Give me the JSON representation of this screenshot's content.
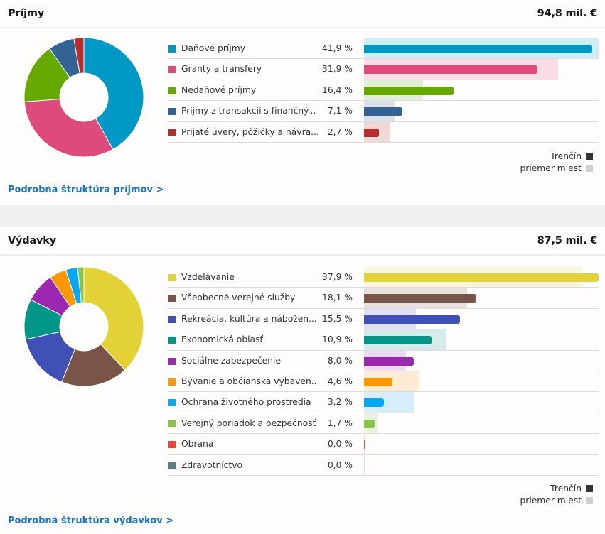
{
  "chart_data": [
    {
      "type": "bar",
      "title": "Príjmy",
      "total": "94,8 mil. €",
      "categories": [
        "Daňové príjmy",
        "Granty a transfery",
        "Nedaňové príjmy",
        "Príjmy z transakcií s finančný...",
        "Prijaté úvery, pôžičky a návra..."
      ],
      "series": [
        {
          "name": "Trenčín",
          "values": [
            41.9,
            31.9,
            16.4,
            7.1,
            2.7
          ]
        },
        {
          "name": "priemer miest",
          "values": [
            43.1,
            35.6,
            10.8,
            5.7,
            4.8
          ]
        }
      ],
      "value_labels": [
        "41,9 %",
        "31,9 %",
        "16,4 %",
        "7,1 %",
        "2,7 %"
      ],
      "colors": [
        "#0099c6",
        "#de4a7b",
        "#66aa00",
        "#316395",
        "#b82e2e"
      ],
      "avg_colors": [
        "#d3ebf3",
        "#f9dce6",
        "#e3efd3",
        "#dae1ea",
        "#f1d8d8"
      ],
      "xlim": [
        0,
        43.1
      ],
      "pie": {
        "type": "pie",
        "values": [
          41.9,
          31.9,
          16.4,
          7.1,
          2.7
        ]
      }
    },
    {
      "type": "bar",
      "title": "Výdavky",
      "total": "87,5 mil. €",
      "categories": [
        "Vzdelávanie",
        "Všeobecné verejné služby",
        "Rekreácia, kultúra a náboženstvo...",
        "Ekonomická oblasť",
        "Sociálne zabezpečenie",
        "Bývanie a občianska vybaven...",
        "Ochrana životného prostredia",
        "Verejný poriadok a bezpečnosť",
        "Obrana",
        "Zdravotníctvo"
      ],
      "series": [
        {
          "name": "Trenčín",
          "values": [
            37.9,
            18.1,
            15.5,
            10.9,
            8.0,
            4.6,
            3.2,
            1.7,
            0.0,
            0.0
          ]
        },
        {
          "name": "priemer miest",
          "values": [
            35.4,
            16.6,
            8.4,
            13.2,
            6.8,
            9.0,
            8.0,
            2.3,
            0.1,
            0.1
          ]
        }
      ],
      "value_labels": [
        "37,9 %",
        "18,1 %",
        "15,5 %",
        "10,9 %",
        "8,0 %",
        "4,6 %",
        "3,2 %",
        "1,7 %",
        "0,0 %",
        "0,0 %"
      ],
      "colors": [
        "#e2d235",
        "#795548",
        "#3f51b5",
        "#009688",
        "#9c27b0",
        "#ff9800",
        "#03a9f4",
        "#8bc34a",
        "#f44336",
        "#607d8b"
      ],
      "avg_colors": [
        "#faf5df",
        "#e9e0df",
        "#dfdff2",
        "#d5ecea",
        "#eddaef",
        "#fdebd4",
        "#d5eefa",
        "#e8f2df",
        "#fbdada",
        "#e0e5e8"
      ],
      "xlim": [
        0,
        37.9
      ],
      "pie": {
        "type": "pie",
        "values": [
          37.9,
          18.1,
          15.5,
          10.9,
          8.0,
          4.6,
          3.2,
          1.7,
          0.0,
          0.0
        ]
      }
    }
  ],
  "sections": [
    {
      "title": "Príjmy",
      "total": "94,8 mil. €",
      "labels": [
        "Daňové príjmy",
        "Granty a transfery",
        "Nedaňové príjmy",
        "Príjmy z transakcií s finančný...",
        "Prijaté úvery, pôžičky a návra..."
      ],
      "link": "Podrobná štruktúra príjmov  >"
    },
    {
      "title": "Výdavky",
      "total": "87,5 mil. €",
      "labels": [
        "Vzdelávanie",
        "Všeobecné verejné služby",
        "Rekreácia, kultúra a nábožen...",
        "Ekonomická oblasť",
        "Sociálne zabezpečenie",
        "Bývanie a občianska vybaven...",
        "Ochrana životného prostredia",
        "Verejný poriadok a bezpečnosť",
        "Obrana",
        "Zdravotníctvo"
      ],
      "link": "Podrobná štruktúra výdavkov  >"
    }
  ],
  "legend": {
    "city": "Trenčín",
    "average": "priemer miest",
    "city_color": "#333333",
    "average_color": "#d0d0d0"
  }
}
